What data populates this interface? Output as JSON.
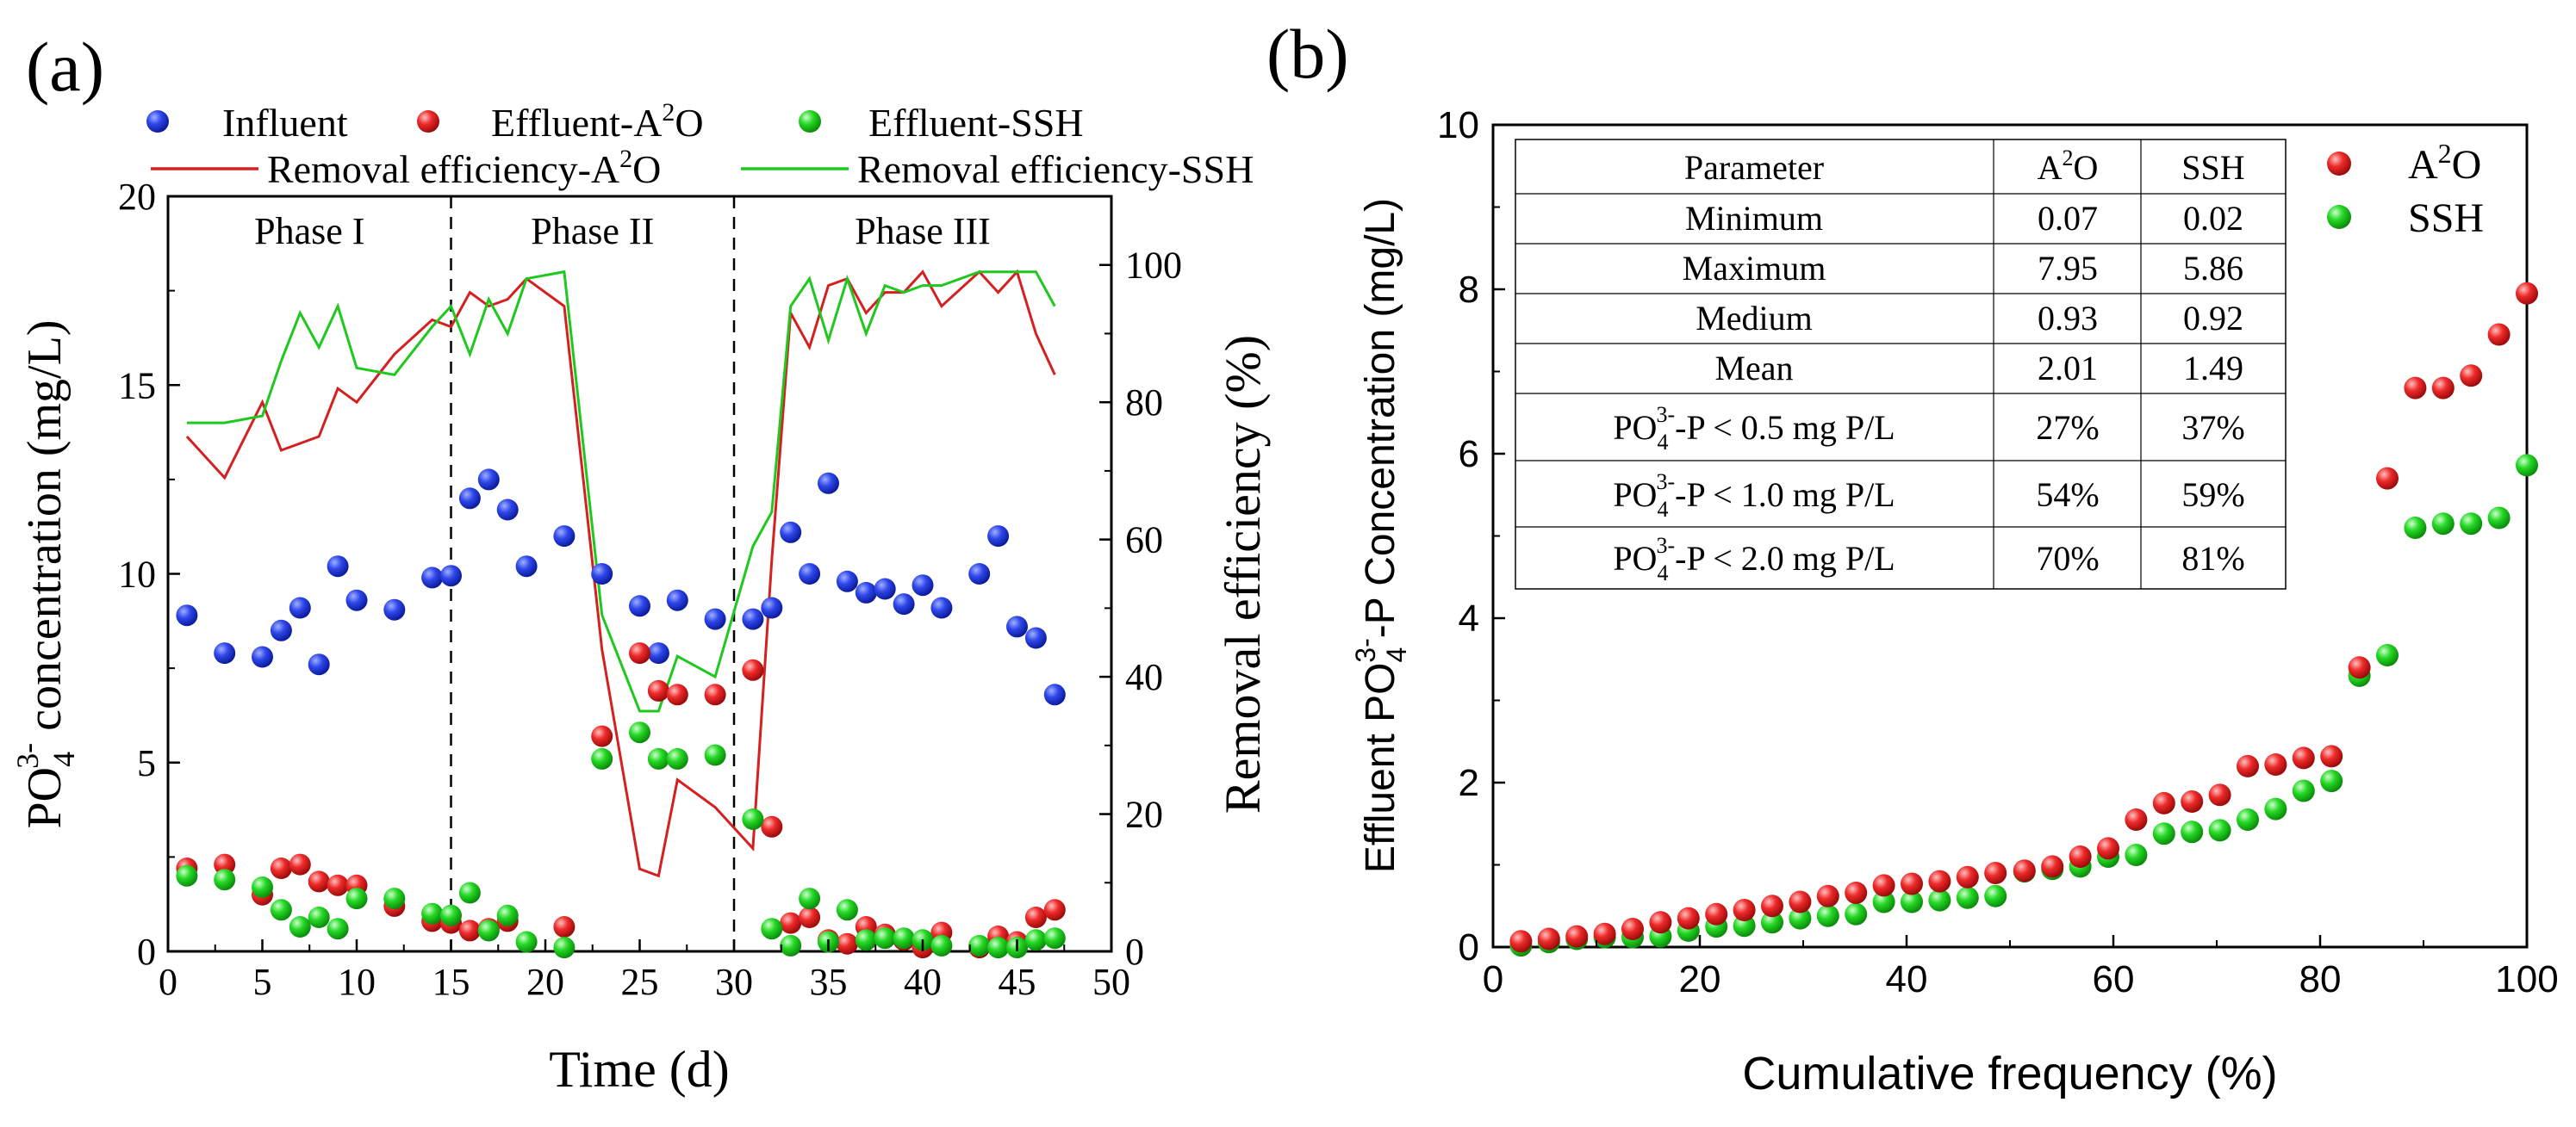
{
  "chart_data": [
    {
      "type": "scatter",
      "panel_label": "(a)",
      "xlabel": "Time (d)",
      "ylabel_left": "PO43- concentration (mg/L)",
      "ylabel_parts": [
        "PO",
        "4",
        "3-",
        " concentration (mg/L)"
      ],
      "ylabel_right": "Removal efficiency (%)",
      "xlim": [
        0,
        50
      ],
      "ylim_left": [
        0,
        20
      ],
      "ylim_right": [
        0,
        110
      ],
      "x_ticks": [
        0,
        5,
        10,
        15,
        20,
        25,
        30,
        35,
        40,
        45,
        50
      ],
      "y_ticks_left": [
        0,
        5,
        10,
        15,
        20
      ],
      "y_ticks_right": [
        0,
        20,
        40,
        60,
        80,
        100
      ],
      "phase_boundaries": [
        15,
        30
      ],
      "phases": [
        {
          "label": "Phase I",
          "x": 7.5
        },
        {
          "label": "Phase II",
          "x": 22.5
        },
        {
          "label": "Phase III",
          "x": 40
        }
      ],
      "legend": {
        "influent": "Influent",
        "effluent_a2o": "Effluent-A2O",
        "effluent_a2o_parts": [
          "Effluent-A",
          "2",
          "O"
        ],
        "effluent_ssh": "Effluent-SSH",
        "removal_a2o": "Removal efficiency-A2O",
        "removal_a2o_parts": [
          "Removal efficiency-A",
          "2",
          "O"
        ],
        "removal_ssh": "Removal efficiency-SSH"
      },
      "series": [
        {
          "name": "Influent",
          "kind": "scatter",
          "axis": "left",
          "color": "#2338e0",
          "x": [
            1,
            3,
            5,
            6,
            7,
            8,
            9,
            10,
            12,
            14,
            15,
            16,
            17,
            18,
            19,
            21,
            23,
            25,
            26,
            27,
            29,
            31,
            32,
            33,
            34,
            35,
            36,
            37,
            38,
            39,
            40,
            41,
            43,
            44,
            45,
            46,
            47
          ],
          "y": [
            8.9,
            7.9,
            7.8,
            8.5,
            9.1,
            7.6,
            10.2,
            9.3,
            9.05,
            9.9,
            9.95,
            12.0,
            12.5,
            11.7,
            10.2,
            11.0,
            10.0,
            9.15,
            7.9,
            9.3,
            8.8,
            8.8,
            9.1,
            11.1,
            10.0,
            12.4,
            9.8,
            9.5,
            9.6,
            9.2,
            9.7,
            9.1,
            10.0,
            11.0,
            8.6,
            8.3,
            6.8
          ]
        },
        {
          "name": "Effluent-A2O",
          "kind": "scatter",
          "axis": "left",
          "color": "#e62424",
          "x": [
            1,
            3,
            5,
            6,
            7,
            8,
            9,
            10,
            12,
            14,
            15,
            16,
            17,
            18,
            21,
            23,
            25,
            26,
            27,
            29,
            31,
            32,
            33,
            34,
            35,
            36,
            37,
            38,
            39,
            40,
            41,
            43,
            44,
            45,
            46,
            47
          ],
          "y": [
            2.2,
            2.3,
            1.5,
            2.2,
            2.3,
            1.85,
            1.75,
            1.75,
            1.2,
            0.8,
            0.75,
            0.55,
            0.6,
            0.8,
            0.65,
            5.7,
            7.9,
            6.9,
            6.8,
            6.8,
            7.45,
            3.3,
            0.75,
            0.9,
            0.3,
            0.2,
            0.65,
            0.45,
            0.3,
            0.1,
            0.5,
            0.1,
            0.4,
            0.25,
            0.9,
            1.1
          ]
        },
        {
          "name": "Effluent-SSH",
          "kind": "scatter",
          "axis": "left",
          "color": "#1ed21e",
          "x": [
            1,
            3,
            5,
            6,
            7,
            8,
            9,
            10,
            12,
            14,
            15,
            16,
            17,
            18,
            19,
            21,
            23,
            25,
            26,
            27,
            29,
            31,
            32,
            33,
            34,
            35,
            36,
            37,
            38,
            39,
            40,
            41,
            43,
            44,
            45,
            46,
            47
          ],
          "y": [
            2.0,
            1.9,
            1.7,
            1.1,
            0.65,
            0.9,
            0.6,
            1.4,
            1.4,
            1.0,
            0.95,
            1.55,
            0.55,
            0.95,
            0.25,
            0.1,
            5.1,
            5.8,
            5.1,
            5.1,
            5.2,
            3.5,
            0.6,
            0.15,
            1.4,
            0.25,
            1.1,
            0.3,
            0.35,
            0.35,
            0.3,
            0.15,
            0.15,
            0.1,
            0.1,
            0.3,
            0.35
          ]
        },
        {
          "name": "Removal efficiency-A2O",
          "kind": "line",
          "axis": "right",
          "color": "#d42020",
          "x": [
            1,
            3,
            5,
            6,
            7,
            8,
            9,
            10,
            12,
            14,
            15,
            16,
            17,
            18,
            19,
            21,
            23,
            25,
            26,
            27,
            29,
            31,
            32,
            33,
            34,
            35,
            36,
            37,
            38,
            39,
            40,
            41,
            43,
            44,
            45,
            46,
            47
          ],
          "y": [
            75,
            69,
            80,
            73,
            74,
            75,
            82,
            80,
            87,
            92,
            91,
            96,
            94,
            95,
            98,
            94,
            44,
            12,
            11,
            25,
            21,
            15,
            57,
            93,
            88,
            97,
            98,
            93,
            96,
            96,
            99,
            94,
            99,
            96,
            99,
            90,
            84
          ]
        },
        {
          "name": "Removal efficiency-SSH",
          "kind": "line",
          "axis": "right",
          "color": "#1ec81e",
          "x": [
            1,
            3,
            5,
            6,
            7,
            8,
            9,
            10,
            12,
            14,
            15,
            16,
            17,
            18,
            19,
            21,
            23,
            25,
            26,
            27,
            29,
            31,
            32,
            33,
            34,
            35,
            36,
            37,
            38,
            39,
            40,
            41,
            43,
            44,
            45,
            46,
            47
          ],
          "y": [
            77,
            77,
            78,
            86,
            93,
            88,
            94,
            85,
            84,
            91,
            94,
            87,
            95,
            90,
            98,
            99,
            49,
            35,
            35,
            43,
            40,
            59,
            64,
            94,
            98,
            89,
            98,
            90,
            97,
            96,
            97,
            97,
            99,
            99,
            99,
            99,
            94
          ]
        }
      ]
    },
    {
      "type": "scatter",
      "panel_label": "(b)",
      "xlabel": "Cumulative frequency (%)",
      "ylabel": "Effluent PO43--P Concentration (mg/L)",
      "ylabel_parts": [
        "Effluent PO",
        "4",
        "3-",
        "-P Concentration (mg/L)"
      ],
      "xlim": [
        0,
        100
      ],
      "ylim": [
        0,
        10
      ],
      "x_ticks": [
        0,
        20,
        40,
        60,
        80,
        100
      ],
      "y_ticks": [
        0,
        2,
        4,
        6,
        8,
        10
      ],
      "legend": {
        "a2o": "A2O",
        "a2o_parts": [
          "A",
          "2",
          "O"
        ],
        "ssh": "SSH"
      },
      "series": [
        {
          "name": "A2O",
          "color": "#e62424",
          "x": [
            2.7,
            5.4,
            8.1,
            10.8,
            13.5,
            16.2,
            18.9,
            21.6,
            24.3,
            27.0,
            29.7,
            32.4,
            35.1,
            37.8,
            40.5,
            43.2,
            45.9,
            48.6,
            51.4,
            54.1,
            56.8,
            59.5,
            62.2,
            64.9,
            67.6,
            70.3,
            73.0,
            75.7,
            78.4,
            81.1,
            83.8,
            86.5,
            89.2,
            91.9,
            94.6,
            97.3,
            100
          ],
          "y": [
            0.07,
            0.1,
            0.13,
            0.16,
            0.22,
            0.3,
            0.35,
            0.4,
            0.45,
            0.5,
            0.55,
            0.62,
            0.66,
            0.75,
            0.77,
            0.8,
            0.85,
            0.9,
            0.93,
            0.98,
            1.1,
            1.2,
            1.55,
            1.75,
            1.77,
            1.85,
            2.2,
            2.22,
            2.3,
            2.32,
            3.4,
            5.7,
            6.8,
            6.8,
            6.95,
            7.45,
            7.95
          ]
        },
        {
          "name": "SSH",
          "color": "#1ed21e",
          "x": [
            2.7,
            5.4,
            8.1,
            10.8,
            13.5,
            16.2,
            18.9,
            21.6,
            24.3,
            27.0,
            29.7,
            32.4,
            35.1,
            37.8,
            40.5,
            43.2,
            45.9,
            48.6,
            51.4,
            54.1,
            56.8,
            59.5,
            62.2,
            64.9,
            67.6,
            70.3,
            73.0,
            75.7,
            78.4,
            81.1,
            83.8,
            86.5,
            89.2,
            91.9,
            94.6,
            97.3,
            100
          ],
          "y": [
            0.02,
            0.06,
            0.1,
            0.12,
            0.12,
            0.13,
            0.2,
            0.25,
            0.26,
            0.3,
            0.35,
            0.38,
            0.4,
            0.55,
            0.55,
            0.57,
            0.6,
            0.62,
            0.92,
            0.95,
            0.98,
            1.1,
            1.12,
            1.38,
            1.4,
            1.42,
            1.55,
            1.68,
            1.9,
            2.02,
            3.3,
            3.55,
            5.1,
            5.15,
            5.15,
            5.22,
            5.86
          ]
        }
      ],
      "table": {
        "headers": [
          "Parameter",
          "A2O",
          "SSH"
        ],
        "header_a2o_parts": [
          "A",
          "2",
          "O"
        ],
        "rows": [
          {
            "param": "Minimum",
            "a2o": "0.07",
            "ssh": "0.02"
          },
          {
            "param": "Maximum",
            "a2o": "7.95",
            "ssh": "5.86"
          },
          {
            "param": "Medium",
            "a2o": "0.93",
            "ssh": "0.92"
          },
          {
            "param": "Mean",
            "a2o": "2.01",
            "ssh": "1.49"
          },
          {
            "param": "PO43--P < 0.5 mg P/L",
            "parts": [
              "PO",
              "4",
              "3-",
              "-P < 0.5 mg P/L"
            ],
            "a2o": "27%",
            "ssh": "37%"
          },
          {
            "param": "PO43--P < 1.0 mg P/L",
            "parts": [
              "PO",
              "4",
              "3-",
              "-P < 1.0 mg P/L"
            ],
            "a2o": "54%",
            "ssh": "59%"
          },
          {
            "param": "PO43--P < 2.0 mg P/L",
            "parts": [
              "PO",
              "4",
              "3-",
              "-P < 2.0 mg P/L"
            ],
            "a2o": "70%",
            "ssh": "81%"
          }
        ]
      }
    }
  ]
}
